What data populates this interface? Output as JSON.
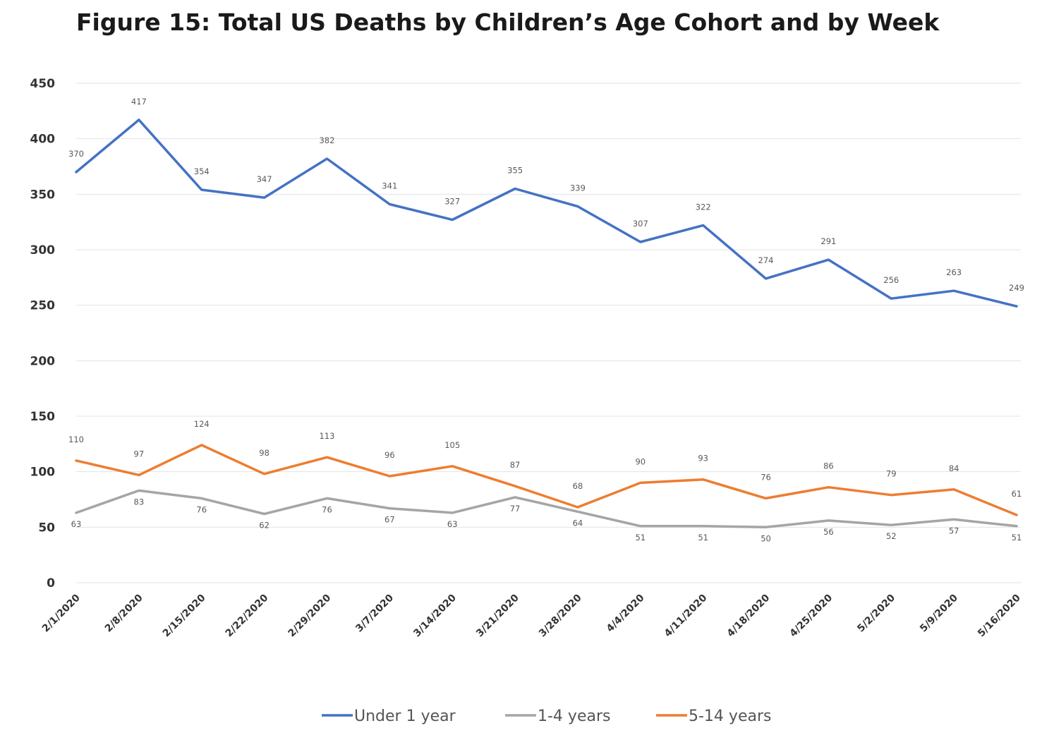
{
  "chart_data": {
    "type": "line",
    "title": "Figure 15: Total US Deaths by Children’s Age Cohort and by Week",
    "xlabel": "",
    "ylabel": "",
    "ylim": [
      0,
      450
    ],
    "yticks": [
      0,
      50,
      100,
      150,
      200,
      250,
      300,
      350,
      400,
      450
    ],
    "grid": true,
    "legend_position": "bottom",
    "categories": [
      "2/1/2020",
      "2/8/2020",
      "2/15/2020",
      "2/22/2020",
      "2/29/2020",
      "3/7/2020",
      "3/14/2020",
      "3/21/2020",
      "3/28/2020",
      "4/4/2020",
      "4/11/2020",
      "4/18/2020",
      "4/25/2020",
      "5/2/2020",
      "5/9/2020",
      "5/16/2020"
    ],
    "series": [
      {
        "name": "Under 1 year",
        "color": "#4472C4",
        "values": [
          370,
          417,
          354,
          347,
          382,
          341,
          327,
          355,
          339,
          307,
          322,
          274,
          291,
          256,
          263,
          249
        ]
      },
      {
        "name": "1-4 years",
        "color": "#A5A5A5",
        "values": [
          63,
          83,
          76,
          62,
          76,
          67,
          63,
          77,
          64,
          51,
          51,
          50,
          56,
          52,
          57,
          51
        ]
      },
      {
        "name": "5-14 years",
        "color": "#ED7D31",
        "values": [
          110,
          97,
          124,
          98,
          113,
          96,
          105,
          87,
          68,
          90,
          93,
          76,
          86,
          79,
          84,
          61
        ]
      }
    ]
  }
}
